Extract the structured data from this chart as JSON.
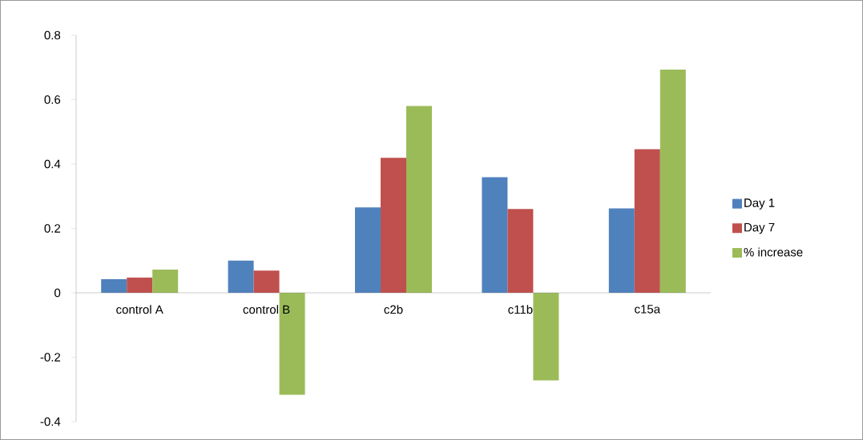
{
  "chart_data": {
    "type": "bar",
    "categories": [
      "control A",
      "control B",
      "c2b",
      "c11b",
      "c15a"
    ],
    "series": [
      {
        "name": "Day 1",
        "color": "#4f81bd",
        "values": [
          0.042,
          0.1,
          0.265,
          0.359,
          0.262
        ]
      },
      {
        "name": "Day 7",
        "color": "#c0504d",
        "values": [
          0.047,
          0.069,
          0.419,
          0.26,
          0.446
        ]
      },
      {
        "name": "% increase",
        "color": "#9bbb59",
        "values": [
          0.072,
          -0.317,
          0.58,
          -0.272,
          0.693
        ]
      }
    ],
    "ylim": [
      -0.4,
      0.8
    ],
    "yticks": [
      -0.4,
      -0.2,
      0,
      0.2,
      0.4,
      0.6,
      0.8
    ],
    "grid": false,
    "legend": "right"
  }
}
